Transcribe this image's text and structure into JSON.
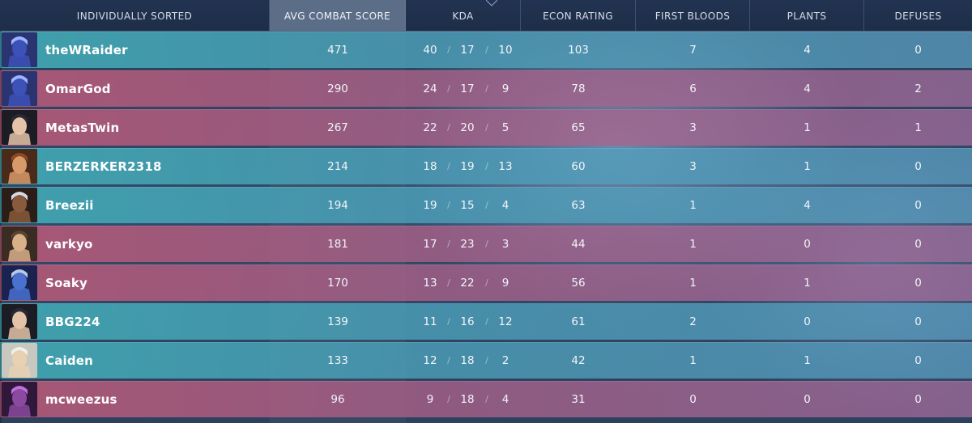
{
  "header": {
    "columns": [
      {
        "key": "sort",
        "label": "INDIVIDUALLY SORTED"
      },
      {
        "key": "acs",
        "label": "AVG COMBAT SCORE"
      },
      {
        "key": "kda",
        "label": "KDA"
      },
      {
        "key": "econ",
        "label": "ECON RATING"
      },
      {
        "key": "fb",
        "label": "FIRST BLOODS"
      },
      {
        "key": "plants",
        "label": "PLANTS"
      },
      {
        "key": "defuses",
        "label": "DEFUSES"
      }
    ],
    "active_column": "acs"
  },
  "colors": {
    "team_blue": "#40a8b2",
    "team_red": "#b25876",
    "header_bg": "#213350",
    "active_header": "#5c6d88"
  },
  "players": [
    {
      "name": "theWRaider",
      "team": "blue",
      "agent_icon": "agent-omen-icon",
      "acs": "471",
      "k": "40",
      "d": "17",
      "a": "10",
      "econ": "103",
      "fb": "7",
      "plants": "4",
      "defuses": "0"
    },
    {
      "name": "OmarGod",
      "team": "red",
      "agent_icon": "agent-omen-icon",
      "acs": "290",
      "k": "24",
      "d": "17",
      "a": "9",
      "econ": "78",
      "fb": "6",
      "plants": "4",
      "defuses": "2"
    },
    {
      "name": "MetasTwin",
      "team": "red",
      "agent_icon": "agent-sage-icon",
      "acs": "267",
      "k": "22",
      "d": "20",
      "a": "5",
      "econ": "65",
      "fb": "3",
      "plants": "1",
      "defuses": "1"
    },
    {
      "name": "BERZERKER2318",
      "team": "blue",
      "agent_icon": "agent-brimstone-icon",
      "acs": "214",
      "k": "18",
      "d": "19",
      "a": "13",
      "econ": "60",
      "fb": "3",
      "plants": "1",
      "defuses": "0"
    },
    {
      "name": "Breezii",
      "team": "blue",
      "agent_icon": "agent-phoenix-icon",
      "acs": "194",
      "k": "19",
      "d": "15",
      "a": "4",
      "econ": "63",
      "fb": "1",
      "plants": "4",
      "defuses": "0"
    },
    {
      "name": "varkyo",
      "team": "red",
      "agent_icon": "agent-cypher-icon",
      "acs": "181",
      "k": "17",
      "d": "23",
      "a": "3",
      "econ": "44",
      "fb": "1",
      "plants": "0",
      "defuses": "0"
    },
    {
      "name": "Soaky",
      "team": "red",
      "agent_icon": "agent-yoru-icon",
      "acs": "170",
      "k": "13",
      "d": "22",
      "a": "9",
      "econ": "56",
      "fb": "1",
      "plants": "1",
      "defuses": "0"
    },
    {
      "name": "BBG224",
      "team": "blue",
      "agent_icon": "agent-sage-icon",
      "acs": "139",
      "k": "11",
      "d": "16",
      "a": "12",
      "econ": "61",
      "fb": "2",
      "plants": "0",
      "defuses": "0"
    },
    {
      "name": "Caiden",
      "team": "blue",
      "agent_icon": "agent-sova-icon",
      "acs": "133",
      "k": "12",
      "d": "18",
      "a": "2",
      "econ": "42",
      "fb": "1",
      "plants": "1",
      "defuses": "0"
    },
    {
      "name": "mcweezus",
      "team": "red",
      "agent_icon": "agent-reyna-icon",
      "acs": "96",
      "k": "9",
      "d": "18",
      "a": "4",
      "econ": "31",
      "fb": "0",
      "plants": "0",
      "defuses": "0"
    }
  ]
}
